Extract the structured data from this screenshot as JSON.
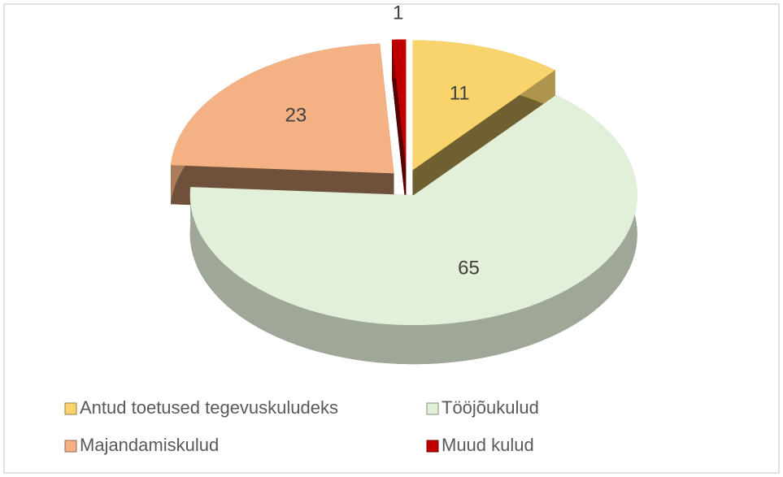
{
  "chart_data": {
    "type": "pie",
    "categories": [
      "Antud toetused tegevuskuludeks",
      "Tööjõukulud",
      "Majandamiskulud",
      "Muud kulud"
    ],
    "values": [
      11,
      65,
      23,
      1
    ],
    "colors": [
      "#f9d46c",
      "#e2efd9",
      "#f4b183",
      "#c00000"
    ]
  }
}
